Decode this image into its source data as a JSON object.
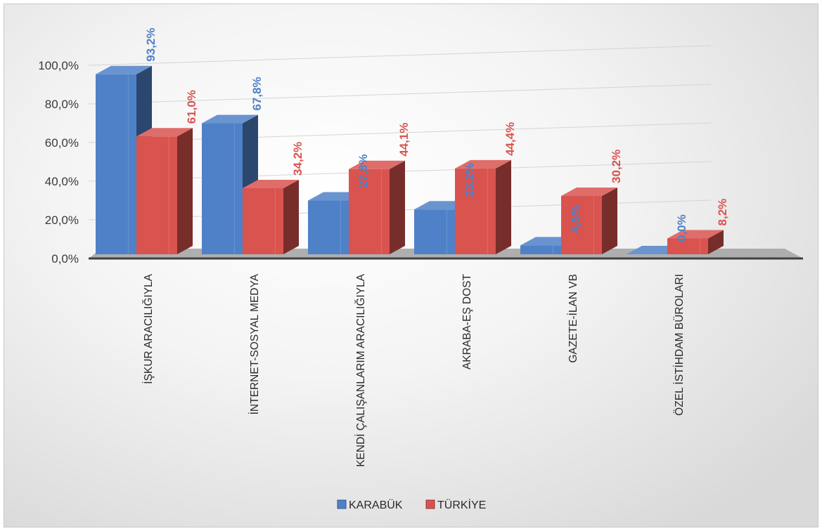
{
  "chart_data": {
    "type": "bar",
    "title": "",
    "xlabel": "",
    "ylabel": "",
    "ylim": [
      0,
      100
    ],
    "y_ticks": [
      "0,0%",
      "20,0%",
      "40,0%",
      "60,0%",
      "80,0%",
      "100,0%"
    ],
    "categories": [
      "İŞKUR ARACILIĞIYLA",
      "İNTERNET-SOSYAL MEDYA",
      "KENDİ ÇALIŞANLARIM ARACILIĞIYLA",
      "AKRABA-EŞ DOST",
      "GAZETE-İLAN VB",
      "ÖZEL İSTİHDAM BÜROLARI"
    ],
    "series": [
      {
        "name": "KARABÜK",
        "color": "#4F81C8",
        "values": [
          93.2,
          67.8,
          27.8,
          23.2,
          4.6,
          0.0
        ],
        "labels": [
          "93,2%",
          "67,8%",
          "27,8%",
          "23,2%",
          "4,6%",
          "0,0%"
        ]
      },
      {
        "name": "TÜRKİYE",
        "color": "#D9534F",
        "values": [
          61.0,
          34.2,
          44.1,
          44.4,
          30.2,
          8.2
        ],
        "labels": [
          "61,0%",
          "34,2%",
          "44,1%",
          "44,4%",
          "30,2%",
          "8,2%"
        ]
      }
    ],
    "grid": true,
    "legend_position": "bottom",
    "style": "3d-clustered-column"
  }
}
